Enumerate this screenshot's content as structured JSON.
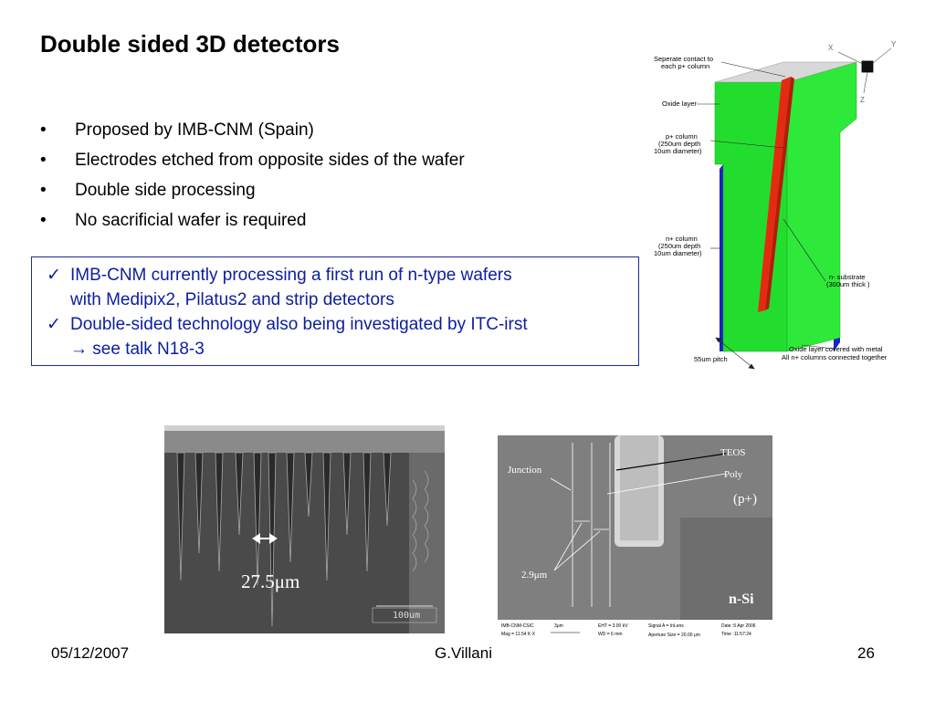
{
  "title": "Double sided 3D detectors",
  "bullets": [
    "Proposed by IMB-CNM (Spain)",
    "Electrodes etched from opposite sides of the wafer",
    "Double side processing",
    "No sacrificial wafer is required"
  ],
  "bullet_symbol": "•",
  "check_symbol": "✓",
  "highlight": {
    "line1": "IMB-CNM currently processing a first run of n-type wafers",
    "line2": "with Medipix2, Pilatus2 and strip detectors",
    "line3": "Double-sided technology also being investigated by ITC-irst",
    "line4": "see talk N18-3",
    "arrow": "→"
  },
  "diagram": {
    "axis_x": "X",
    "axis_y": "Y",
    "axis_z": "Z",
    "label_contact_1": "Seperate contact to",
    "label_contact_2": "each p+ column",
    "label_oxide": "Oxide layer",
    "label_pcol_1": "p+ column",
    "label_pcol_2": "(250um depth",
    "label_pcol_3": "10um diameter)",
    "label_ncol_1": "n+ column",
    "label_ncol_2": "(250um depth",
    "label_ncol_3": "10um diameter)",
    "label_sub_1": "n- substrate",
    "label_sub_2": "(300um thick )",
    "label_pitch": "55um pitch",
    "label_metal_1": "Oxide layer covered with metal",
    "label_metal_2": "All n+ columns connected together"
  },
  "sem1": {
    "measurement": "27.5μm",
    "scale": "100um"
  },
  "sem2": {
    "teos": "TEOS",
    "poly": "Poly",
    "junction": "Junction",
    "pplus": "(p+)",
    "width": "2.9μm",
    "nsi": "n-Si",
    "info_1a": "IMB-CNM-CSIC",
    "info_1b": "Mag = 11.54 K X",
    "info_2": "3μm",
    "info_3a": "EHT = 3.00 kV",
    "info_3b": "WD = 6 mm",
    "info_4a": "Signal A = InLens",
    "info_4b": "Aperture Size = 20.00 μm",
    "info_5a": "Date :5 Apr 2006",
    "info_5b": "Time :11:57:24"
  },
  "footer": {
    "date": "05/12/2007",
    "author": "G.Villani",
    "page": "26"
  },
  "colors": {
    "title": "#000000",
    "box_text": "#0b1e9e",
    "substrate": "#22dd2e",
    "p_column": "#e52a12",
    "n_column": "#1a22c8"
  }
}
